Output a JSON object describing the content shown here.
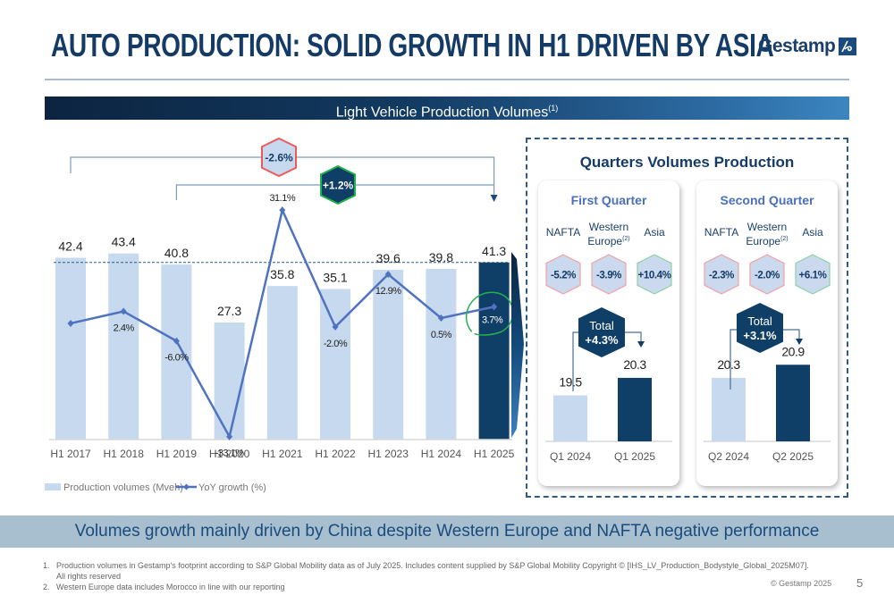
{
  "header": {
    "title": "AUTO PRODUCTION: SOLID GROWTH IN H1 DRIVEN BY ASIA",
    "logo_text": "Gestamp",
    "logo_icon": "gestamp-logo-icon"
  },
  "banner": {
    "title": "Light Vehicle Production Volumes",
    "footnote_ref": "(1)"
  },
  "colors": {
    "light_bar": "#c6d9ee",
    "dark_bar": "#0f3e66",
    "line": "#4f73c0",
    "negative_badge_border": "#ee5a5a",
    "positive_badge_border": "#22b24c",
    "title_navy": "#143b66"
  },
  "chart_data": [
    {
      "type": "bar",
      "title": "Light Vehicle Production Volumes",
      "categories": [
        "H1 2017",
        "H1 2018",
        "H1 2019",
        "H1 2020",
        "H1 2021",
        "H1 2022",
        "H1 2023",
        "H1 2024",
        "H1 2025"
      ],
      "series": [
        {
          "name": "Production volumes (Mveh)",
          "type": "bar",
          "values": [
            42.4,
            43.4,
            40.8,
            27.3,
            35.8,
            35.1,
            39.6,
            39.8,
            41.3
          ],
          "highlight_index": 8
        },
        {
          "name": "YoY growth (%)",
          "type": "line",
          "values": [
            null,
            2.4,
            -6.0,
            -33.1,
            31.1,
            -2.0,
            12.9,
            0.5,
            3.7
          ],
          "labels": [
            "",
            "2.4%",
            "-6.0%",
            "-33.1%",
            "31.1%",
            "-2.0%",
            "12.9%",
            "0.5%",
            "3.7%"
          ]
        }
      ],
      "reference_line": 41.3,
      "annotations": [
        {
          "from": "H1 2017",
          "to": "H1 2025",
          "label": "-2.6%",
          "sentiment": "negative"
        },
        {
          "from": "H1 2019",
          "to": "H1 2025",
          "label": "+1.2%",
          "sentiment": "positive"
        }
      ],
      "legend": [
        "Production volumes (Mveh)",
        "YoY growth (%)"
      ],
      "legend_position": "bottom-left",
      "grid": false
    },
    {
      "type": "bar",
      "title": "First Quarter",
      "categories": [
        "Q1 2024",
        "Q1 2025"
      ],
      "values": [
        19.5,
        20.3
      ],
      "total_change": "+4.3%"
    },
    {
      "type": "bar",
      "title": "Second Quarter",
      "categories": [
        "Q2 2024",
        "Q2 2025"
      ],
      "values": [
        20.3,
        20.9
      ],
      "total_change": "+3.1%"
    }
  ],
  "quarters": {
    "title": "Quarters Volumes Production",
    "cards": [
      {
        "title": "First Quarter",
        "regions": [
          {
            "name": "NAFTA",
            "sup": "",
            "change": "-5.2%",
            "sentiment": "negative"
          },
          {
            "name": "Western Europe",
            "line1": "Western",
            "line2": "Europe",
            "sup": "(2)",
            "change": "-3.9%",
            "sentiment": "negative"
          },
          {
            "name": "Asia",
            "sup": "",
            "change": "+10.4%",
            "sentiment": "positive"
          }
        ],
        "total_label": "Total",
        "total_change": "+4.3%",
        "bars": [
          {
            "label": "Q1 2024",
            "value": "19.5"
          },
          {
            "label": "Q1 2025",
            "value": "20.3"
          }
        ]
      },
      {
        "title": "Second Quarter",
        "regions": [
          {
            "name": "NAFTA",
            "sup": "",
            "change": "-2.3%",
            "sentiment": "negative"
          },
          {
            "name": "Western Europe",
            "line1": "Western",
            "line2": "Europe",
            "sup": "(2)",
            "change": "-2.0%",
            "sentiment": "negative"
          },
          {
            "name": "Asia",
            "sup": "",
            "change": "+6.1%",
            "sentiment": "positive"
          }
        ],
        "total_label": "Total",
        "total_change": "+3.1%",
        "bars": [
          {
            "label": "Q2 2024",
            "value": "20.3"
          },
          {
            "label": "Q2 2025",
            "value": "20.9"
          }
        ]
      }
    ]
  },
  "footer": {
    "conclusion": "Volumes growth mainly driven by China despite Western Europe and NAFTA negative performance",
    "footnotes": [
      {
        "num": "1.",
        "text": "Production volumes in Gestamp's footprint according to S&P Global Mobility data as of July 2025. Includes content supplied by S&P Global Mobility Copyright © [IHS_LV_Production_Bodystyle_Global_2025M07].",
        "text2": "All rights reserved"
      },
      {
        "num": "2.",
        "text": "Western Europe data includes Morocco in line with our reporting"
      }
    ],
    "copyright": "© Gestamp 2025",
    "page_number": "5"
  }
}
